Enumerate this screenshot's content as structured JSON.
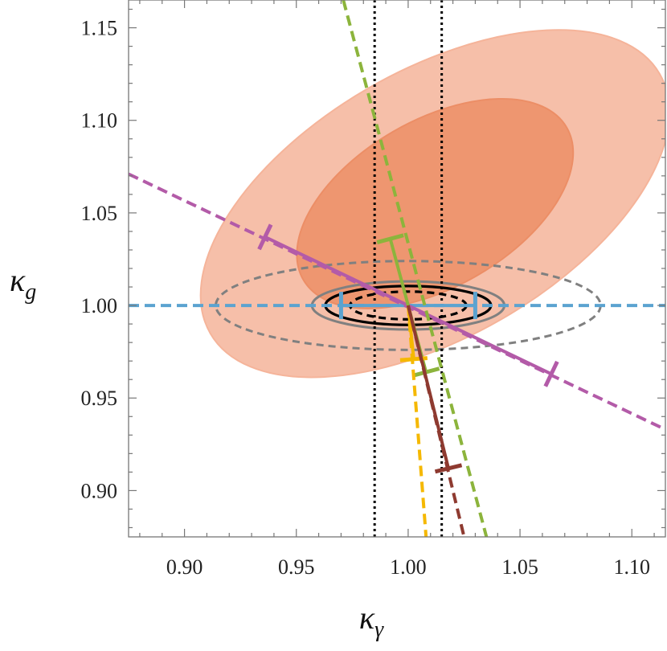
{
  "chart_data": {
    "type": "scatter",
    "title": "",
    "xlabel": {
      "symbol": "κ",
      "subscript": "γ"
    },
    "ylabel": {
      "symbol": "κ",
      "subscript": "g"
    },
    "xlim": [
      0.875,
      1.115
    ],
    "ylim": [
      0.875,
      1.165
    ],
    "x_ticks": [
      0.9,
      0.95,
      1.0,
      1.05,
      1.1
    ],
    "y_ticks": [
      0.9,
      0.95,
      1.0,
      1.05,
      1.1,
      1.15
    ],
    "x_tick_labels": [
      "0.90",
      "0.95",
      "1.00",
      "1.05",
      "1.10"
    ],
    "y_tick_labels": [
      "0.90",
      "0.95",
      "1.00",
      "1.05",
      "1.10",
      "1.15"
    ],
    "minor_ticks_per_major": 5,
    "grid": false,
    "legend": "none",
    "colors": {
      "orange_outer": "#f5b49a",
      "orange_inner": "#ec8e66",
      "gray": "#808080",
      "black": "#000000",
      "blue": "#5ba3d0",
      "purple": "#b35ba8",
      "green": "#8cb43c",
      "yellow": "#f5b800",
      "brown": "#8e3a30"
    },
    "ellipses": [
      {
        "id": "orange-outer",
        "center": [
          1.012,
          1.055
        ],
        "axes": [
          0.116,
          0.072
        ],
        "angle_deg": -30,
        "style": "filled",
        "color": "#f5b49a"
      },
      {
        "id": "orange-inner",
        "center": [
          1.012,
          1.055
        ],
        "axes": [
          0.068,
          0.045
        ],
        "angle_deg": -30,
        "style": "filled",
        "color": "#ec8e66"
      },
      {
        "id": "gray-dashed",
        "center": [
          1.0,
          1.0
        ],
        "axes": [
          0.086,
          0.024
        ],
        "angle_deg": 0,
        "style": "dashed",
        "color": "#808080"
      },
      {
        "id": "gray-solid",
        "center": [
          1.0,
          1.0
        ],
        "axes": [
          0.043,
          0.013
        ],
        "angle_deg": 0,
        "style": "solid",
        "color": "#808080"
      },
      {
        "id": "black-solid",
        "center": [
          1.0,
          1.0
        ],
        "axes": [
          0.037,
          0.0105
        ],
        "angle_deg": 0,
        "style": "solid",
        "color": "#000000"
      },
      {
        "id": "black-dashed",
        "center": [
          1.0,
          1.0
        ],
        "axes": [
          0.026,
          0.0075
        ],
        "angle_deg": 0,
        "style": "dashed",
        "color": "#000000"
      }
    ],
    "vertical_lines": [
      {
        "x": 0.985,
        "style": "dotted",
        "color": "#000000"
      },
      {
        "x": 1.015,
        "style": "dotted",
        "color": "#000000"
      }
    ],
    "series": [
      {
        "id": "blue",
        "color": "#5ba3d0",
        "dashed": [
          [
            0.875,
            1.0
          ],
          [
            1.115,
            1.0
          ]
        ],
        "solid": [
          [
            0.97,
            1.0
          ],
          [
            1.03,
            1.0
          ]
        ],
        "tick_marks": [
          [
            0.97,
            1.0
          ],
          [
            1.03,
            1.0
          ]
        ]
      },
      {
        "id": "purple",
        "color": "#b35ba8",
        "dashed": [
          [
            0.875,
            1.071
          ],
          [
            1.115,
            0.933
          ]
        ],
        "solid": [
          [
            0.936,
            1.037
          ],
          [
            1.064,
            0.963
          ]
        ],
        "tick_marks": [
          [
            0.936,
            1.037
          ],
          [
            1.064,
            0.963
          ]
        ]
      },
      {
        "id": "green",
        "color": "#8cb43c",
        "dashed": [
          [
            0.971,
            1.165
          ],
          [
            1.035,
            0.875
          ]
        ],
        "solid": [
          [
            0.992,
            1.036
          ],
          [
            1.008,
            0.964
          ]
        ],
        "tick_marks": [
          [
            0.992,
            1.036
          ],
          [
            1.008,
            0.964
          ]
        ]
      },
      {
        "id": "yellow",
        "color": "#f5b800",
        "dashed": [
          [
            1.0,
            1.0
          ],
          [
            1.008,
            0.875
          ]
        ],
        "solid": [
          [
            1.0,
            1.0
          ],
          [
            1.0025,
            0.971
          ]
        ],
        "tick_marks": [
          [
            1.0025,
            0.971
          ]
        ]
      },
      {
        "id": "brown",
        "color": "#8e3a30",
        "dashed": [
          [
            1.0,
            1.0
          ],
          [
            1.025,
            0.875
          ]
        ],
        "solid": [
          [
            1.0,
            1.0
          ],
          [
            1.018,
            0.912
          ]
        ],
        "tick_marks": [
          [
            1.018,
            0.912
          ]
        ]
      }
    ]
  }
}
